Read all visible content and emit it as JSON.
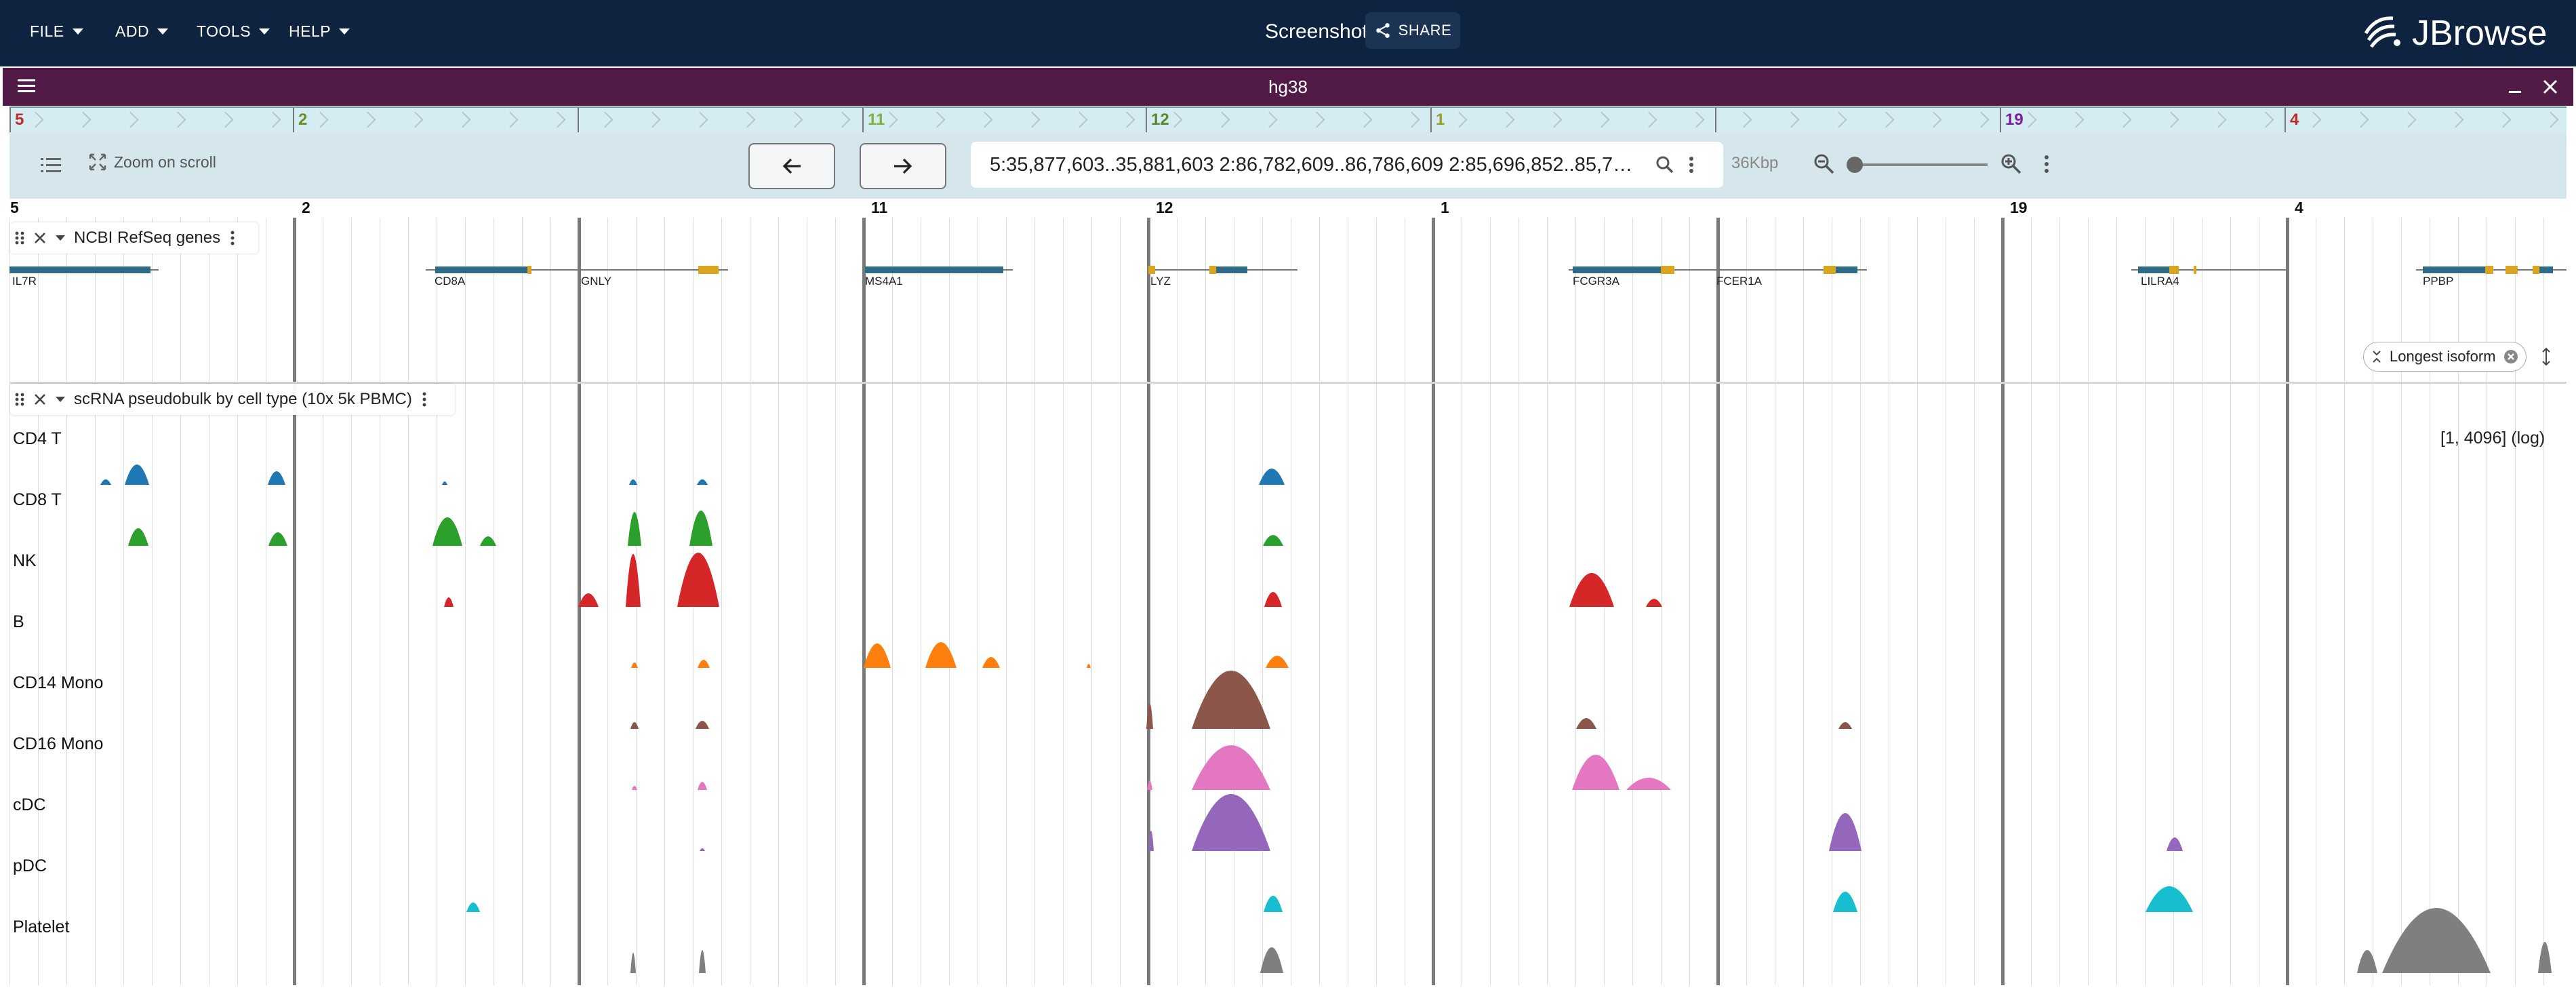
{
  "menus": [
    {
      "label": "FILE"
    },
    {
      "label": "ADD"
    },
    {
      "label": "TOOLS"
    },
    {
      "label": "HELP"
    }
  ],
  "session": {
    "name": "Screenshot",
    "share_label": "SHARE"
  },
  "logo": {
    "text": "JBrowse"
  },
  "view": {
    "assembly": "hg38"
  },
  "toolbar": {
    "zoom_on_scroll_label": "Zoom on scroll",
    "location": "5:35,877,603..35,881,603 2:86,782,609..86,786,609 2:85,696,852..85,700,85…",
    "span": "36Kbp"
  },
  "regions": [
    {
      "chrom": "5",
      "color": "#c62828"
    },
    {
      "chrom": "2",
      "color": "#6b8e23"
    },
    {
      "chrom": "",
      "color": "#6b8e23"
    },
    {
      "chrom": "11",
      "color": "#7cb342"
    },
    {
      "chrom": "12",
      "color": "#558b2f"
    },
    {
      "chrom": "1",
      "color": "#9e9d24"
    },
    {
      "chrom": "",
      "color": "#9e9d24"
    },
    {
      "chrom": "19",
      "color": "#7b1fa2"
    },
    {
      "chrom": "4",
      "color": "#c62828"
    }
  ],
  "tracks": {
    "genes": {
      "title": "NCBI RefSeq genes"
    },
    "scrna": {
      "title": "scRNA pseudobulk by cell type (10x 5k PBMC)",
      "scale": "[1, 4096] (log)"
    }
  },
  "longest_isoform_label": "Longest isoform",
  "genes": [
    {
      "name": "IL7R"
    },
    {
      "name": "CD8A"
    },
    {
      "name": "GNLY"
    },
    {
      "name": "MS4A1"
    },
    {
      "name": "LYZ"
    },
    {
      "name": "FCGR3A"
    },
    {
      "name": "FCER1A"
    },
    {
      "name": "LILRA4"
    },
    {
      "name": "PPBP"
    }
  ],
  "cell_types": [
    {
      "name": "CD4 T",
      "color": "#1f77b4"
    },
    {
      "name": "CD8 T",
      "color": "#2ca02c"
    },
    {
      "name": "NK",
      "color": "#d62728"
    },
    {
      "name": "B",
      "color": "#ff7f0e"
    },
    {
      "name": "CD14 Mono",
      "color": "#8c564b"
    },
    {
      "name": "CD16 Mono",
      "color": "#e377c2"
    },
    {
      "name": "cDC",
      "color": "#9467bd"
    },
    {
      "name": "pDC",
      "color": "#17becf"
    },
    {
      "name": "Platelet",
      "color": "#7f7f7f"
    }
  ]
}
